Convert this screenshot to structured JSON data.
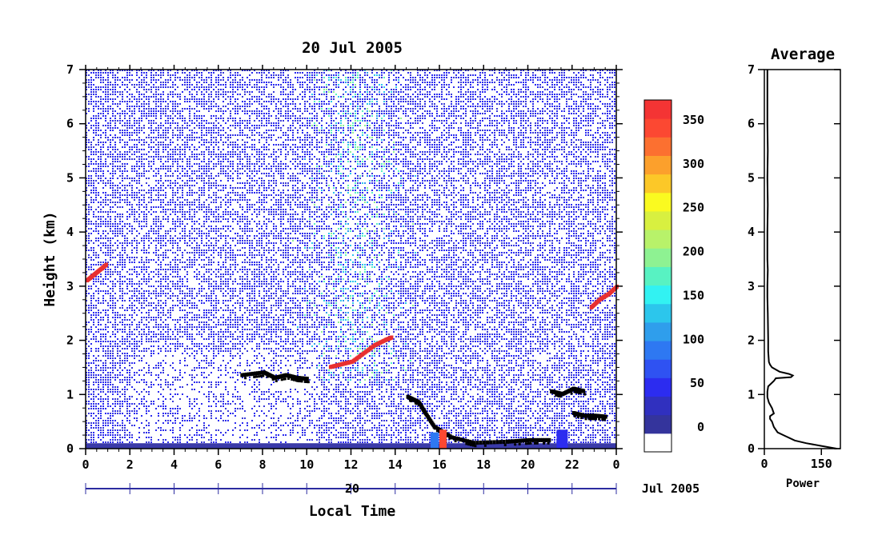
{
  "chart_data": [
    {
      "type": "heatmap",
      "title": "20 Jul 2005",
      "xlabel": "Local Time",
      "ylabel": "Height (km)",
      "xlim": [
        0,
        24
      ],
      "ylim": [
        0,
        7
      ],
      "x_ticks": [
        "0",
        "2",
        "4",
        "6",
        "8",
        "10",
        "12",
        "14",
        "16",
        "18",
        "20",
        "22",
        "0"
      ],
      "y_ticks": [
        "0",
        "1",
        "2",
        "3",
        "4",
        "5",
        "6",
        "7"
      ],
      "date_axis": {
        "day_label": "20",
        "month_year_label": "Jul 2005"
      },
      "colorbar": {
        "ticks": [
          "0",
          "50",
          "100",
          "150",
          "200",
          "250",
          "300",
          "350"
        ],
        "colors": [
          "#ffffff",
          "#34349c",
          "#3030bf",
          "#2c2cf0",
          "#2f52f2",
          "#2e78f2",
          "#2f9eec",
          "#2cc6ec",
          "#32f2f2",
          "#58f2c2",
          "#8ef292",
          "#b8f26a",
          "#d8f040",
          "#fafa20",
          "#fcc828",
          "#fca02c",
          "#fc7030",
          "#fc4832",
          "#f43434"
        ]
      },
      "features": [
        {
          "label": "cloud base, black",
          "points": [
            [
              7.0,
              1.35
            ],
            [
              8.0,
              1.4
            ],
            [
              8.5,
              1.3
            ],
            [
              9.0,
              1.35
            ],
            [
              9.5,
              1.3
            ],
            [
              10.0,
              1.28
            ]
          ]
        },
        {
          "label": "red layer",
          "points": [
            [
              11.0,
              1.5
            ],
            [
              11.5,
              1.55
            ],
            [
              12.0,
              1.6
            ],
            [
              12.5,
              1.75
            ],
            [
              13.0,
              1.9
            ],
            [
              13.5,
              2.0
            ],
            [
              13.8,
              2.05
            ]
          ]
        },
        {
          "label": "low cloud / rain, black",
          "points": [
            [
              14.5,
              0.95
            ],
            [
              15.0,
              0.85
            ],
            [
              15.3,
              0.65
            ],
            [
              15.7,
              0.4
            ],
            [
              16.5,
              0.2
            ],
            [
              17.5,
              0.1
            ],
            [
              19.0,
              0.12
            ],
            [
              20.0,
              0.15
            ],
            [
              21.0,
              0.15
            ]
          ]
        },
        {
          "label": "evening cloud, black",
          "points": [
            [
              21.0,
              1.05
            ],
            [
              21.5,
              1.0
            ],
            [
              22.0,
              1.1
            ],
            [
              22.5,
              1.05
            ]
          ]
        },
        {
          "label": "evening low cloud, black",
          "points": [
            [
              22.0,
              0.65
            ],
            [
              22.5,
              0.6
            ],
            [
              23.0,
              0.6
            ],
            [
              23.5,
              0.58
            ]
          ]
        },
        {
          "label": "morning red layer",
          "points": [
            [
              0.0,
              3.1
            ],
            [
              0.3,
              3.2
            ],
            [
              0.6,
              3.3
            ],
            [
              0.9,
              3.4
            ]
          ]
        },
        {
          "label": "late red layer",
          "points": [
            [
              22.8,
              2.6
            ],
            [
              23.2,
              2.75
            ],
            [
              23.6,
              2.85
            ],
            [
              24.0,
              3.0
            ]
          ]
        }
      ]
    },
    {
      "type": "line",
      "title": "Average",
      "xlabel": "Power",
      "ylabel": "",
      "xlim": [
        0,
        200
      ],
      "ylim": [
        0,
        7
      ],
      "x_ticks": [
        "0",
        "150"
      ],
      "y_ticks": [
        "0",
        "1",
        "2",
        "3",
        "4",
        "5",
        "6",
        "7"
      ],
      "series": [
        {
          "x": [
            190,
            150,
            110,
            80,
            50,
            35,
            25,
            20,
            15,
            15,
            25,
            20,
            12,
            8,
            8,
            10,
            25,
            30,
            70,
            75,
            65,
            40,
            20,
            15,
            12,
            10,
            10,
            9,
            8,
            8,
            9,
            8,
            8,
            9,
            8,
            9,
            8,
            8,
            8,
            8
          ],
          "y": [
            0.0,
            0.05,
            0.1,
            0.15,
            0.25,
            0.3,
            0.4,
            0.5,
            0.55,
            0.6,
            0.65,
            0.75,
            0.85,
            0.95,
            1.05,
            1.15,
            1.25,
            1.3,
            1.32,
            1.35,
            1.38,
            1.42,
            1.5,
            1.55,
            1.6,
            1.8,
            2.0,
            2.5,
            2.8,
            3.0,
            3.3,
            3.5,
            4.0,
            4.5,
            5.0,
            5.5,
            6.0,
            6.3,
            6.6,
            7.0
          ]
        }
      ]
    }
  ]
}
